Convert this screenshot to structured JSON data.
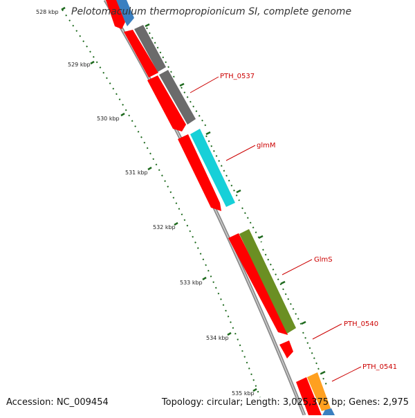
{
  "map": {
    "title": "Pelotomaculum thermopropionicum SI, complete genome",
    "accession": "Accession: NC_009454",
    "summary": "Topology: circular; Length: 3,025,375 bp; Genes: 2,975",
    "ticks": [
      "528 kbp",
      "529 kbp",
      "530 kbp",
      "531 kbp",
      "532 kbp",
      "533 kbp",
      "534 kbp",
      "535 kbp"
    ],
    "gene_labels": [
      "PTH_0537",
      "glmM",
      "GlmS",
      "PTH_0540",
      "PTH_0541"
    ],
    "colors": {
      "backbone": "#8a8a8a",
      "tick": "#1e6a1e",
      "label": "#cc0000",
      "cds": "#ff0000",
      "gray_feature": "#6b6b6b",
      "cyan_feature": "#17d0d8",
      "olive_feature": "#6b8f23",
      "orange_feature": "#ffa020",
      "blue_feature": "#3a7fc0"
    }
  }
}
